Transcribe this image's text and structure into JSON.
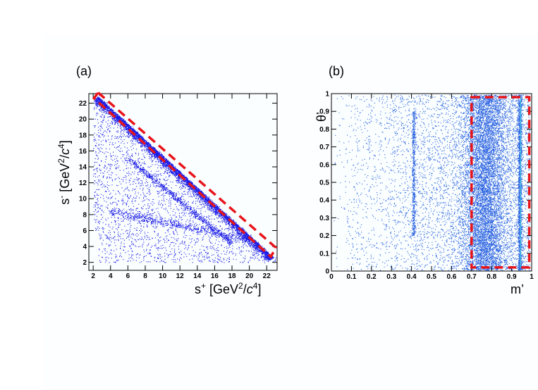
{
  "colors": {
    "points_a": "#1a1ae6",
    "points_b": "#2a62e0",
    "highlight": "#e8151b",
    "frame": "#000000"
  },
  "chart_data": [
    {
      "type": "scatter",
      "panel_label": "(a)",
      "title": "",
      "xlabel": "s⁺ [GeV²/c⁴]",
      "ylabel": "s⁻ [GeV²/c⁴]",
      "xlim": [
        1.5,
        23.2
      ],
      "ylim": [
        1.0,
        23.2
      ],
      "xticks": [
        "2",
        "4",
        "6",
        "8",
        "10",
        "12",
        "14",
        "16",
        "18",
        "20",
        "22"
      ],
      "yticks": [
        "2",
        "4",
        "6",
        "8",
        "10",
        "12",
        "14",
        "16",
        "18",
        "20",
        "22"
      ],
      "x_tick_values": [
        2,
        4,
        6,
        8,
        10,
        12,
        14,
        16,
        18,
        20,
        22
      ],
      "y_tick_values": [
        2,
        4,
        6,
        8,
        10,
        12,
        14,
        16,
        18,
        20,
        22
      ],
      "kinematic_boundary": {
        "s_plus_plus_s_minus": 25.5,
        "s_min": 2.0
      },
      "highlight_region": {
        "shape": "band",
        "along": "s⁺ + s⁻ = 25.5",
        "from": [
          2.9,
          22.8
        ],
        "to": [
          22.4,
          3.5
        ]
      }
    },
    {
      "type": "scatter",
      "panel_label": "(b)",
      "title": "",
      "xlabel": "m’",
      "ylabel": "θ’",
      "xlim": [
        0,
        1
      ],
      "ylim": [
        0,
        1
      ],
      "xticks": [
        "0",
        "0.1",
        "0.2",
        "0.3",
        "0.4",
        "0.5",
        "0.6",
        "0.7",
        "0.8",
        "0.9",
        "1"
      ],
      "yticks": [
        "0",
        "0.1",
        "0.2",
        "0.3",
        "0.4",
        "0.5",
        "0.6",
        "0.7",
        "0.8",
        "0.9",
        "1"
      ],
      "x_tick_values": [
        0,
        0.1,
        0.2,
        0.3,
        0.4,
        0.5,
        0.6,
        0.7,
        0.8,
        0.9,
        1
      ],
      "y_tick_values": [
        0,
        0.1,
        0.2,
        0.3,
        0.4,
        0.5,
        0.6,
        0.7,
        0.8,
        0.9,
        1
      ],
      "dense_bands_m": [
        0.41,
        0.76,
        0.94
      ],
      "highlight_region": {
        "shape": "rectangle",
        "x_range": [
          0.7,
          0.96
        ],
        "y_range": [
          0.02,
          0.98
        ]
      }
    }
  ]
}
